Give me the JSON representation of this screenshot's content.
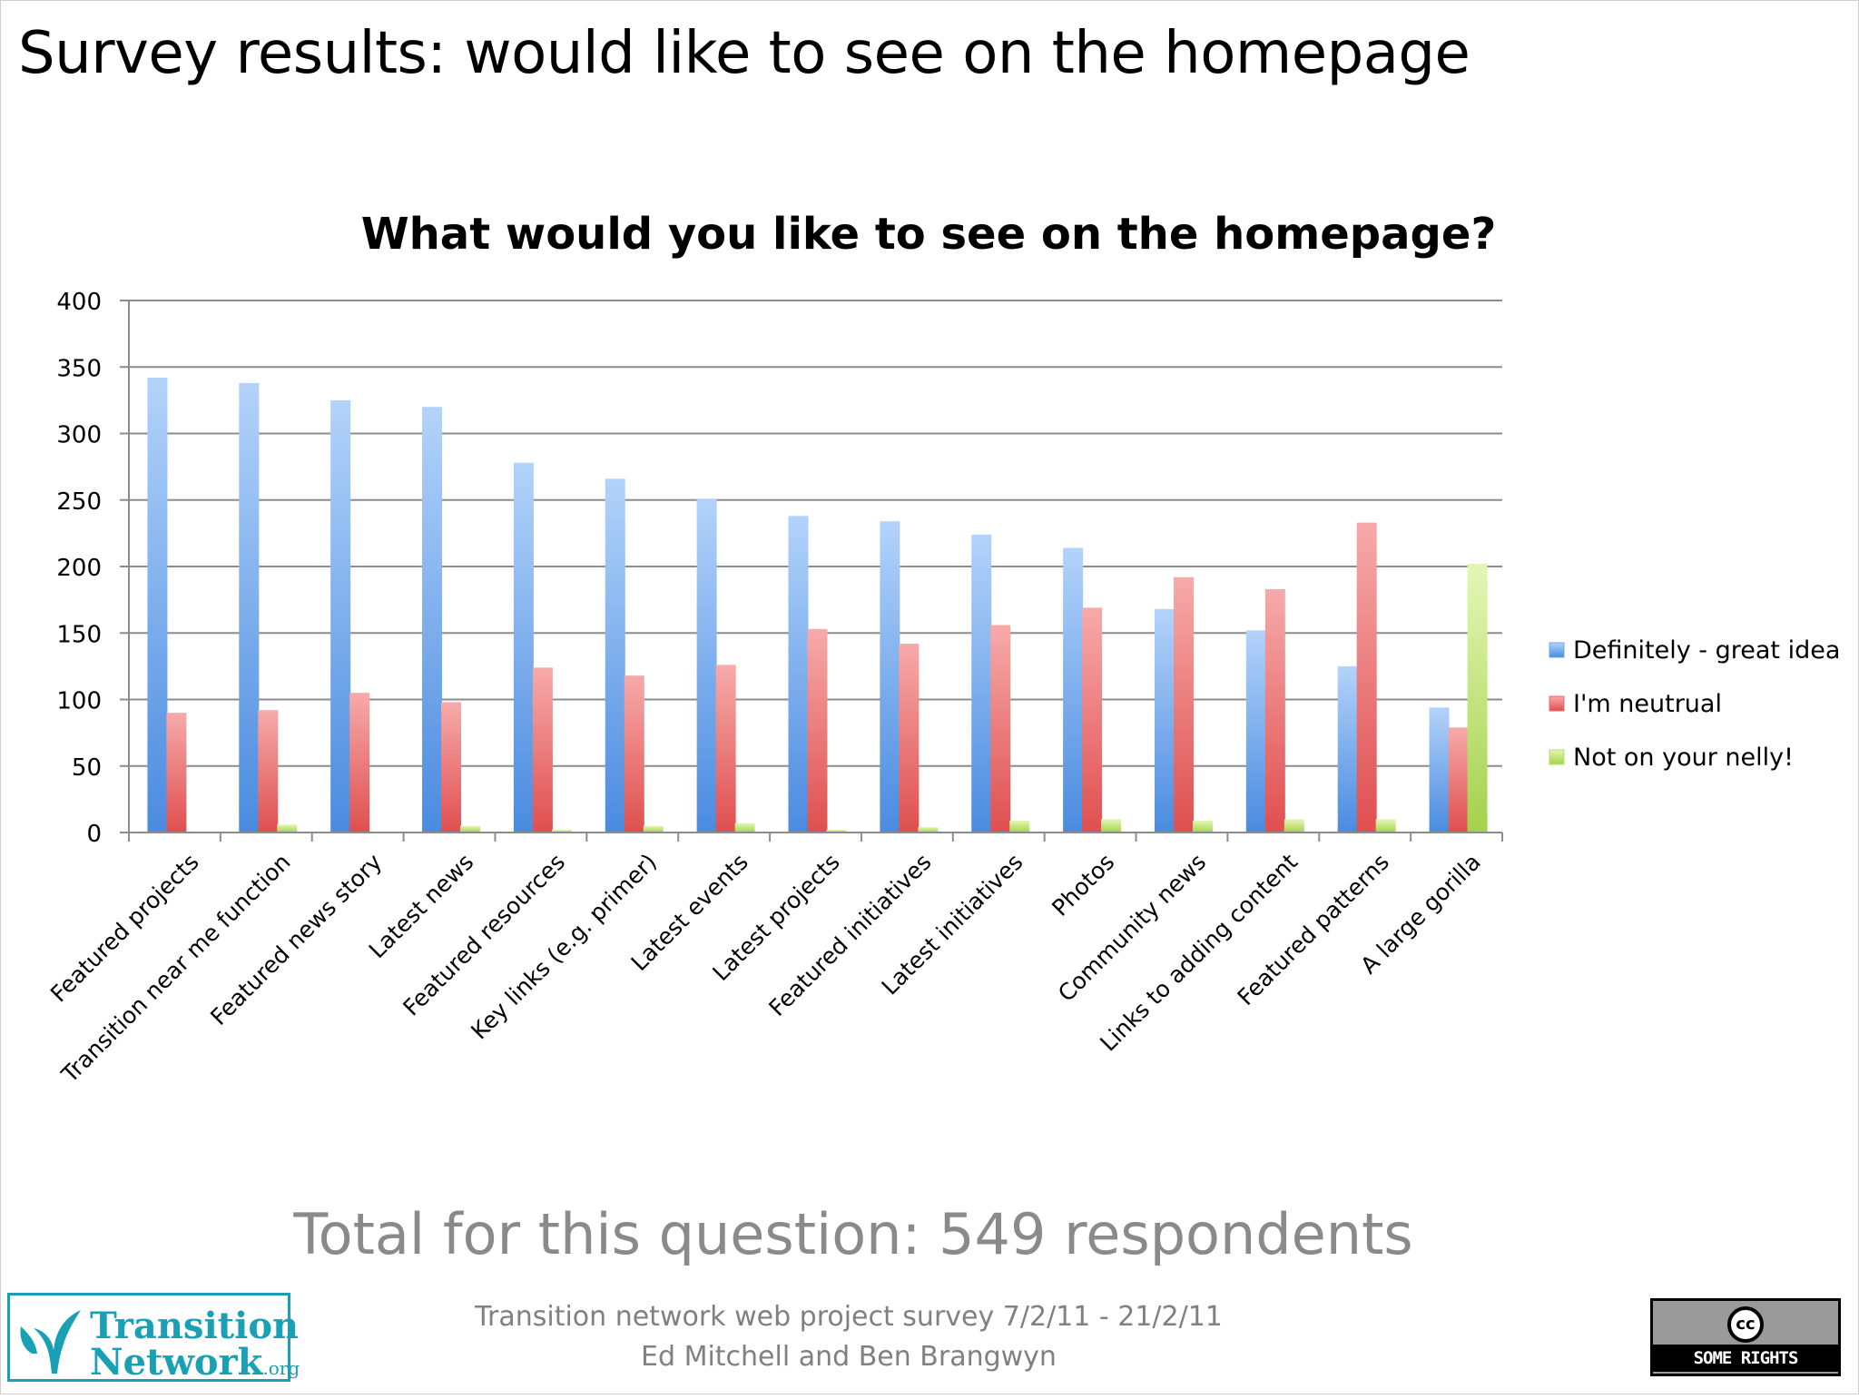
{
  "slide": {
    "title": "Survey results: would like to see on the homepage",
    "total_text": "Total for this question: 549 respondents",
    "footer_line1": "Transition network web project survey 7/2/11 - 21/2/11",
    "footer_line2": "Ed Mitchell and Ben Brangwyn",
    "logo_line1": "Transition",
    "logo_line2": "Network",
    "logo_org": ".org",
    "cc_symbol": "cc",
    "cc_text": "SOME RIGHTS RESERVED"
  },
  "colors": {
    "series": [
      "#6fa6e8",
      "#e86b6b",
      "#b7e06a"
    ],
    "grid": "#8c8c8c",
    "logo": "#1aa0b4"
  },
  "chart_data": {
    "type": "bar",
    "title": "What would you like to see on the homepage?",
    "xlabel": "",
    "ylabel": "",
    "ylim": [
      0,
      400
    ],
    "yticks": [
      0,
      50,
      100,
      150,
      200,
      250,
      300,
      350,
      400
    ],
    "grid": true,
    "legend_position": "right",
    "categories": [
      "Featured projects",
      "Transition near me function",
      "Featured news story",
      "Latest news",
      "Featured resources",
      "Key links (e.g. primer)",
      "Latest events",
      "Latest projects",
      "Featured initiatives",
      "Latest initiatives",
      "Photos",
      "Community news",
      "Links to adding content",
      "Featured patterns",
      "A large gorilla"
    ],
    "series": [
      {
        "name": "Definitely - great idea",
        "values": [
          342,
          338,
          325,
          320,
          278,
          266,
          251,
          238,
          234,
          224,
          214,
          168,
          152,
          125,
          94
        ]
      },
      {
        "name": "I'm neutrual",
        "values": [
          90,
          92,
          105,
          98,
          124,
          118,
          126,
          153,
          142,
          156,
          169,
          192,
          183,
          233,
          79
        ]
      },
      {
        "name": "Not on your nelly!",
        "values": [
          0,
          6,
          0,
          5,
          2,
          5,
          7,
          2,
          4,
          9,
          10,
          9,
          10,
          10,
          202
        ]
      }
    ]
  }
}
